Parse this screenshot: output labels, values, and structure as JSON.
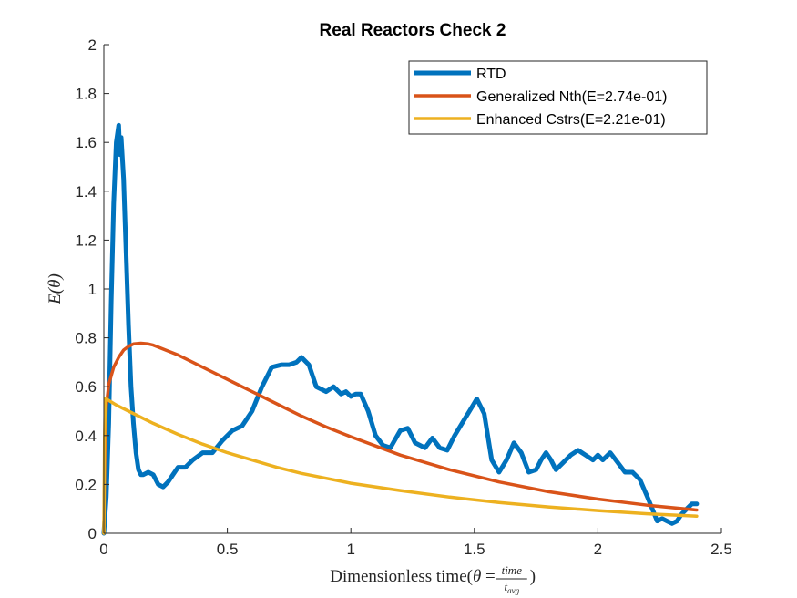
{
  "chart_data": {
    "type": "line",
    "title": "Real Reactors Check 2",
    "xlabel": "Dimensionless time(θ = time / t_avg)",
    "xlabel_parts": {
      "prefix": "Dimensionless time",
      "open": "(",
      "theta": "θ",
      "equals": " = ",
      "num": "time",
      "den_base": "t",
      "den_sub": "avg",
      "close": ")"
    },
    "ylabel": "E(θ)",
    "xlim": [
      0,
      2.5
    ],
    "ylim": [
      0,
      2
    ],
    "xticks": [
      0,
      0.5,
      1,
      1.5,
      2,
      2.5
    ],
    "xtick_labels": [
      "0",
      "0.5",
      "1",
      "1.5",
      "2",
      "2.5"
    ],
    "yticks": [
      0,
      0.2,
      0.4,
      0.6,
      0.8,
      1,
      1.2,
      1.4,
      1.6,
      1.8,
      2
    ],
    "ytick_labels": [
      "0",
      "0.2",
      "0.4",
      "0.6",
      "0.8",
      "1",
      "1.2",
      "1.4",
      "1.6",
      "1.8",
      "2"
    ],
    "grid": false,
    "legend_position": "top-right",
    "series": [
      {
        "name": "RTD",
        "color": "#0072BD",
        "x": [
          0,
          0.01,
          0.02,
          0.03,
          0.04,
          0.05,
          0.06,
          0.065,
          0.07,
          0.08,
          0.09,
          0.1,
          0.11,
          0.12,
          0.13,
          0.14,
          0.15,
          0.16,
          0.18,
          0.2,
          0.22,
          0.24,
          0.26,
          0.28,
          0.3,
          0.33,
          0.36,
          0.4,
          0.44,
          0.48,
          0.52,
          0.56,
          0.6,
          0.64,
          0.68,
          0.72,
          0.75,
          0.78,
          0.8,
          0.83,
          0.86,
          0.9,
          0.93,
          0.96,
          0.98,
          1.0,
          1.02,
          1.04,
          1.07,
          1.1,
          1.13,
          1.16,
          1.2,
          1.23,
          1.26,
          1.3,
          1.33,
          1.36,
          1.39,
          1.42,
          1.45,
          1.48,
          1.51,
          1.54,
          1.57,
          1.6,
          1.63,
          1.66,
          1.69,
          1.72,
          1.75,
          1.77,
          1.79,
          1.81,
          1.83,
          1.86,
          1.89,
          1.92,
          1.95,
          1.98,
          2.0,
          2.02,
          2.05,
          2.08,
          2.11,
          2.14,
          2.17,
          2.2,
          2.22,
          2.24,
          2.26,
          2.28,
          2.3,
          2.32,
          2.34,
          2.36,
          2.38,
          2.4
        ],
        "y": [
          0,
          0.15,
          0.45,
          0.95,
          1.35,
          1.6,
          1.67,
          1.55,
          1.62,
          1.45,
          1.15,
          0.85,
          0.6,
          0.45,
          0.33,
          0.26,
          0.24,
          0.24,
          0.25,
          0.24,
          0.2,
          0.19,
          0.21,
          0.24,
          0.27,
          0.27,
          0.3,
          0.33,
          0.33,
          0.38,
          0.42,
          0.44,
          0.5,
          0.6,
          0.68,
          0.69,
          0.69,
          0.7,
          0.72,
          0.69,
          0.6,
          0.58,
          0.6,
          0.57,
          0.58,
          0.56,
          0.57,
          0.57,
          0.5,
          0.4,
          0.36,
          0.35,
          0.42,
          0.43,
          0.37,
          0.35,
          0.39,
          0.35,
          0.34,
          0.4,
          0.45,
          0.5,
          0.55,
          0.49,
          0.3,
          0.25,
          0.3,
          0.37,
          0.33,
          0.25,
          0.26,
          0.3,
          0.33,
          0.3,
          0.26,
          0.29,
          0.32,
          0.34,
          0.32,
          0.3,
          0.32,
          0.3,
          0.33,
          0.29,
          0.25,
          0.25,
          0.22,
          0.15,
          0.1,
          0.05,
          0.06,
          0.05,
          0.04,
          0.05,
          0.08,
          0.1,
          0.12,
          0.12
        ]
      },
      {
        "name": "Generalized Nth(E=2.74e-01)",
        "color": "#D95319",
        "x": [
          0,
          0.005,
          0.01,
          0.02,
          0.04,
          0.06,
          0.08,
          0.1,
          0.12,
          0.15,
          0.18,
          0.2,
          0.25,
          0.3,
          0.35,
          0.4,
          0.5,
          0.6,
          0.7,
          0.8,
          0.9,
          1.0,
          1.2,
          1.4,
          1.6,
          1.8,
          2.0,
          2.2,
          2.4
        ],
        "y": [
          0,
          0.4,
          0.52,
          0.61,
          0.68,
          0.72,
          0.75,
          0.765,
          0.775,
          0.778,
          0.775,
          0.77,
          0.75,
          0.73,
          0.705,
          0.68,
          0.63,
          0.58,
          0.53,
          0.48,
          0.435,
          0.395,
          0.32,
          0.26,
          0.21,
          0.17,
          0.14,
          0.115,
          0.095
        ]
      },
      {
        "name": "Enhanced Cstrs(E=2.21e-01)",
        "color": "#EDB120",
        "x": [
          0,
          0.003,
          0.006,
          0.01,
          0.05,
          0.1,
          0.2,
          0.3,
          0.4,
          0.5,
          0.6,
          0.7,
          0.8,
          0.9,
          1.0,
          1.2,
          1.4,
          1.6,
          1.8,
          2.0,
          2.2,
          2.4
        ],
        "y": [
          0,
          0.4,
          0.55,
          0.55,
          0.525,
          0.5,
          0.45,
          0.405,
          0.365,
          0.33,
          0.3,
          0.27,
          0.245,
          0.225,
          0.205,
          0.175,
          0.148,
          0.126,
          0.108,
          0.093,
          0.08,
          0.07
        ]
      }
    ]
  }
}
